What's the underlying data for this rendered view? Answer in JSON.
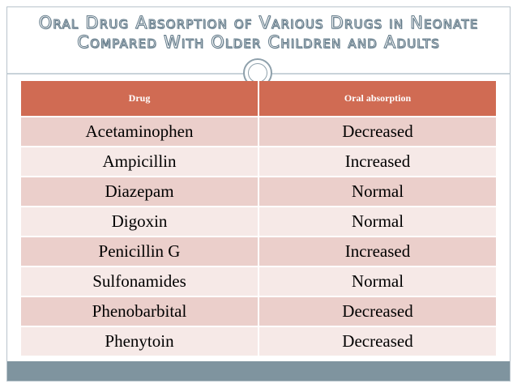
{
  "slide": {
    "title": "Oral Drug Absorption of Various Drugs in Neonate Compared With Older Children and Adults"
  },
  "table": {
    "headers": [
      "Drug",
      "Oral absorption"
    ],
    "rows": [
      [
        "Acetaminophen",
        "Decreased"
      ],
      [
        "Ampicillin",
        "Increased"
      ],
      [
        "Diazepam",
        "Normal"
      ],
      [
        "Digoxin",
        "Normal"
      ],
      [
        "Penicillin G",
        "Increased"
      ],
      [
        "Sulfonamides",
        "Normal"
      ],
      [
        "Phenobarbital",
        "Decreased"
      ],
      [
        "Phenytoin",
        "Decreased"
      ]
    ]
  },
  "colors": {
    "header_background": "#d06b53",
    "row_odd": "#ebcfcb",
    "row_even": "#f6e9e7",
    "footer_bar": "#7f949f",
    "title_outline": "#607887"
  },
  "icons": {
    "divider": "circle-ornament-icon"
  }
}
